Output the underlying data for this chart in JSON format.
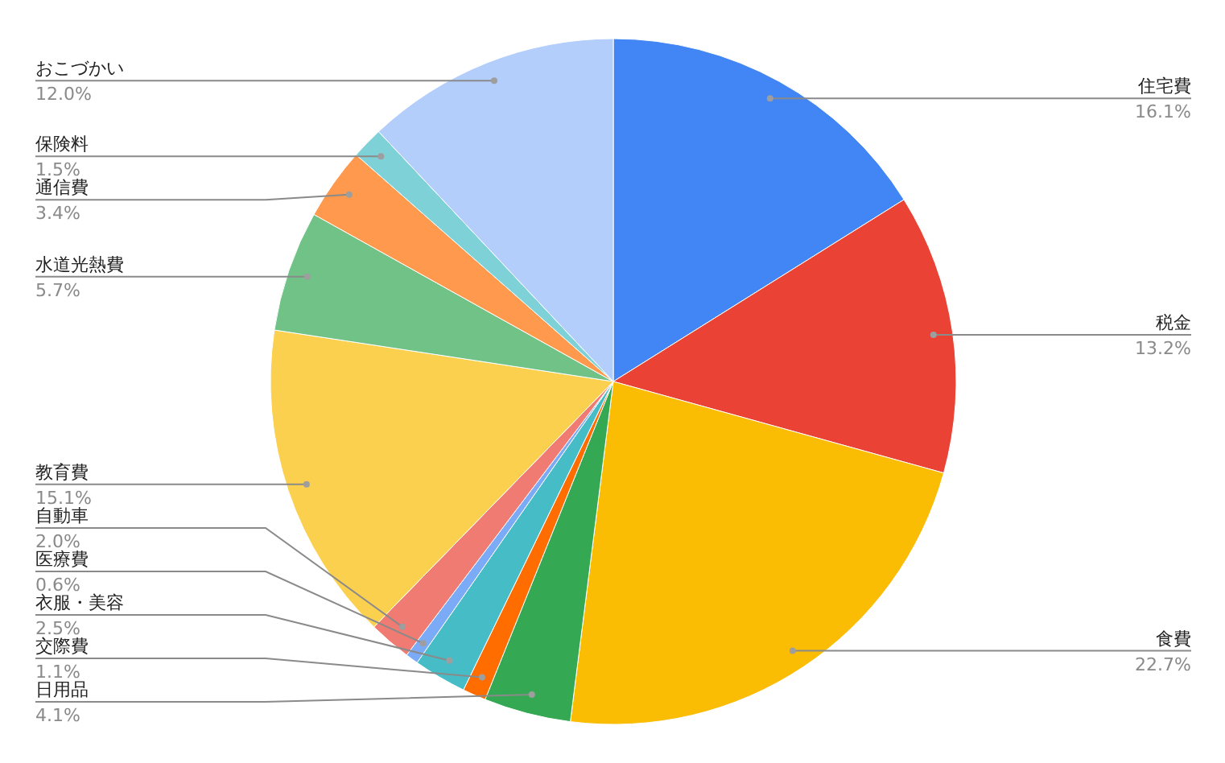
{
  "chart_data": {
    "type": "pie",
    "categories": [
      "住宅費",
      "税金",
      "食費",
      "日用品",
      "交際費",
      "衣服・美容",
      "医療費",
      "自動車",
      "教育費",
      "水道光熱費",
      "通信費",
      "保険料",
      "おこづかい"
    ],
    "values": [
      16.1,
      13.2,
      22.7,
      4.1,
      1.1,
      2.5,
      0.6,
      2.0,
      15.1,
      5.7,
      3.4,
      1.5,
      12.0
    ],
    "value_labels": [
      "16.1%",
      "13.2%",
      "22.7%",
      "4.1%",
      "1.1%",
      "2.5%",
      "0.6%",
      "2.0%",
      "15.1%",
      "5.7%",
      "3.4%",
      "1.5%",
      "12.0%"
    ],
    "colors": [
      "#4285f4",
      "#ea4335",
      "#fbbc04",
      "#34a853",
      "#ff6d01",
      "#46bdc6",
      "#7baaf7",
      "#f07b72",
      "#fcd04f",
      "#71c287",
      "#ff994d",
      "#7ed1d7",
      "#b3cefb"
    ]
  }
}
